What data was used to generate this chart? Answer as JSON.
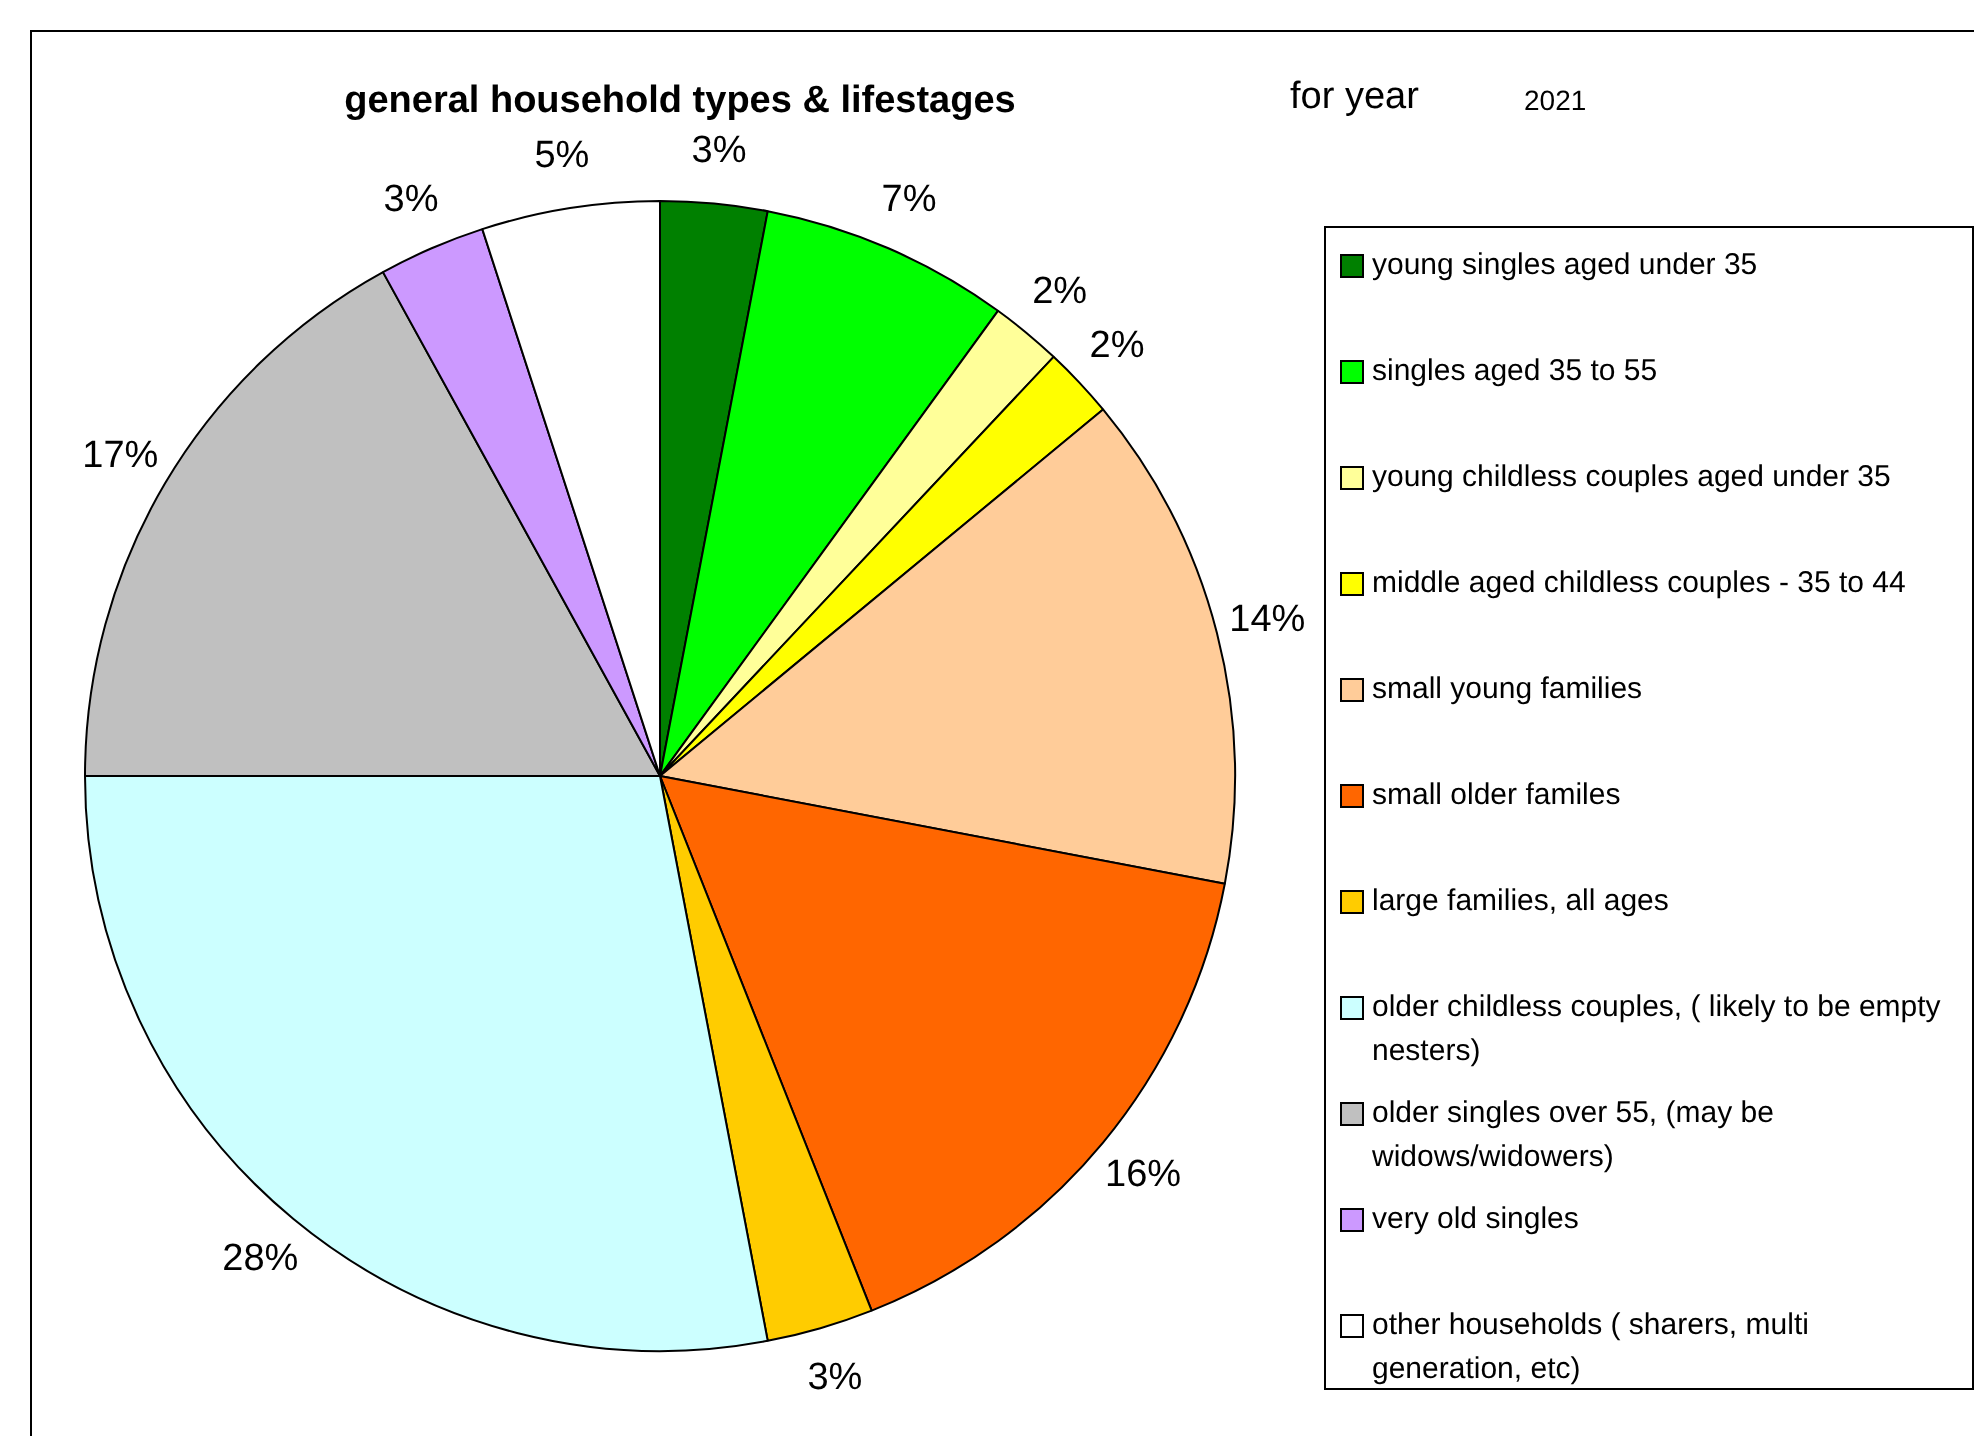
{
  "chart_data": {
    "type": "pie",
    "title": "general household types & lifestages",
    "subtitle": "for year",
    "annotations": [
      "2021"
    ],
    "categories": [
      "young singles aged under 35",
      "singles aged 35 to 55",
      "young childless couples aged under 35",
      "middle aged childless couples - 35 to 44",
      "small young families",
      "small older familes",
      "large families, all ages",
      "older childless couples, ( likely to be empty nesters)",
      "older singles over 55, (may be widows/widowers)",
      "very old singles",
      "other households ( sharers, multi generation, etc)"
    ],
    "values": [
      3,
      7,
      2,
      2,
      14,
      16,
      3,
      28,
      17,
      3,
      5
    ],
    "value_labels": [
      "3%",
      "7%",
      "2%",
      "2%",
      "14%",
      "16%",
      "3%",
      "28%",
      "17%",
      "3%",
      "5%"
    ],
    "colors": [
      "#008000",
      "#00ff00",
      "#ffff99",
      "#ffff00",
      "#ffcc99",
      "#ff6600",
      "#ffcc00",
      "#ccffff",
      "#c0c0c0",
      "#cc99ff",
      "#ffffff"
    ],
    "legend": "right"
  }
}
